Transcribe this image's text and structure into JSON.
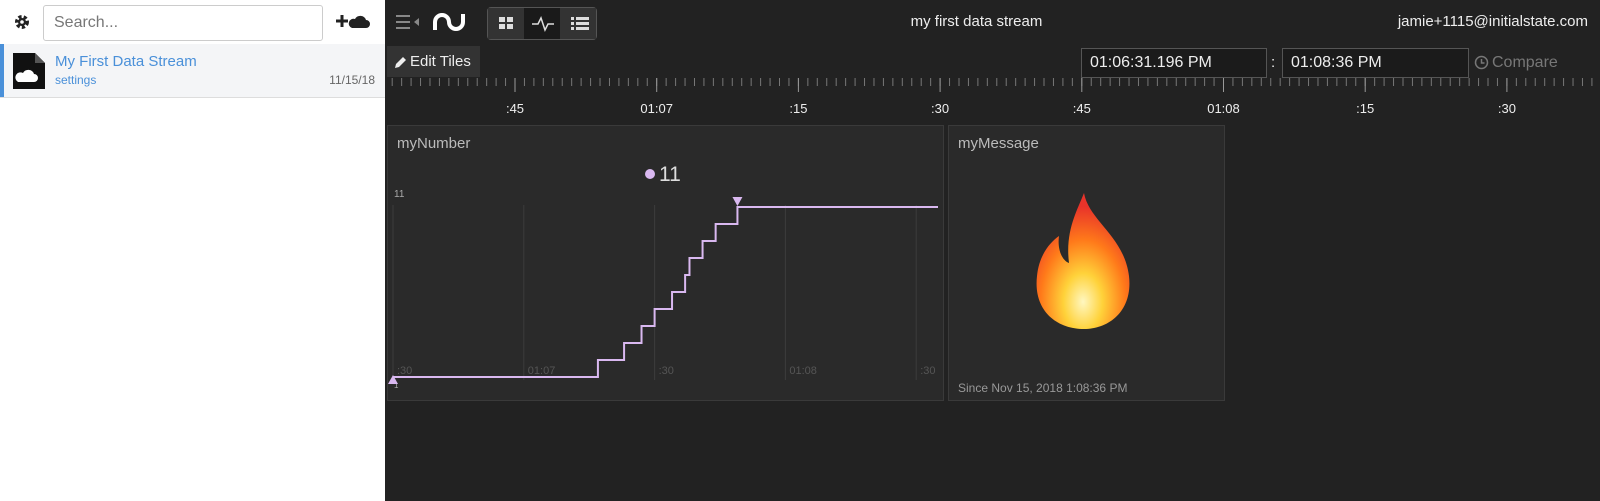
{
  "sidebar": {
    "search_placeholder": "Search...",
    "streams": [
      {
        "name": "My First Data Stream",
        "link": "settings",
        "date": "11/15/18"
      }
    ]
  },
  "header": {
    "title": "my first data stream",
    "user": "jamie+1115@initialstate.com"
  },
  "toolbar": {
    "edit": "Edit Tiles",
    "start": "01:06:31.196 PM",
    "separator": ":",
    "end": "01:08:36 PM",
    "compare": "Compare"
  },
  "timeline": {
    "labels": [
      ":45",
      "01:07",
      ":15",
      ":30",
      ":45",
      "01:08",
      ":15",
      ":30"
    ]
  },
  "tiles": [
    {
      "title": "myNumber",
      "current": "11",
      "chart": {
        "type": "line",
        "step": true,
        "xlim": [
          30,
          155
        ],
        "xticks": [
          {
            "value": 30,
            "label": ":30"
          },
          {
            "value": 60,
            "label": "01:07"
          },
          {
            "value": 90,
            "label": ":30"
          },
          {
            "value": 120,
            "label": "01:08"
          },
          {
            "value": 150,
            "label": ":30"
          }
        ],
        "ylim": [
          1,
          11
        ],
        "yticks": [
          1,
          11
        ],
        "series": [
          {
            "name": "myNumber",
            "color": "#d9b8f0",
            "x": [
              30,
              77,
              83,
              87,
              90,
              94,
              97,
              98,
              101,
              104,
              109
            ],
            "values": [
              1,
              2,
              3,
              4,
              5,
              6,
              7,
              8,
              9,
              10,
              11
            ]
          }
        ]
      }
    },
    {
      "title": "myMessage",
      "since": "Since Nov 15, 2018 1:08:36 PM"
    }
  ]
}
